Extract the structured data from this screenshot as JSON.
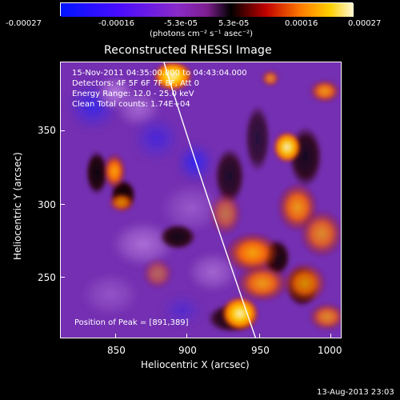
{
  "colorbar": {
    "ticks": [
      "-0.00027",
      "-0.00016",
      "-5.3e-05",
      "5.3e-05",
      "0.00016",
      "0.00027"
    ],
    "unit": "(photons cm⁻² s⁻¹ asec⁻²)"
  },
  "plot": {
    "title": "Reconstructed RHESSI Image",
    "xlabel": "Heliocentric X (arcsec)",
    "ylabel": "Heliocentric Y (arcsec)",
    "x_ticks": [
      "850",
      "900",
      "950",
      "1000"
    ],
    "y_ticks": [
      "350",
      "300",
      "250"
    ]
  },
  "annotations": {
    "line1": "15-Nov-2011 04:35:00.000 to 04:43:04.000",
    "line2": "Detectors: 4F 5F 6F 7F 8F, Att 0",
    "line3": "Energy Range: 12.0 - 25.0 keV",
    "line4": "Clean     Total counts: 1.74E+04",
    "peak": "Position of Peak = [891,389]"
  },
  "footer": {
    "timestamp": "13-Aug-2013 23:03"
  },
  "chart_data": {
    "type": "heatmap",
    "title": "Reconstructed RHESSI Image",
    "xlabel": "Heliocentric X (arcsec)",
    "ylabel": "Heliocentric Y (arcsec)",
    "x_ticks": [
      850,
      900,
      950,
      1000
    ],
    "y_ticks": [
      350,
      300,
      250
    ],
    "xlim": [
      815,
      1005
    ],
    "ylim": [
      205,
      395
    ],
    "colorbar": {
      "min": -0.00027,
      "max": 0.00027,
      "ticks": [
        -0.00027,
        -0.00016,
        -5.3e-05,
        5.3e-05,
        0.00016,
        0.00027
      ]
    }
  },
  "colors": {
    "background": "#000000",
    "foreground": "#ffffff"
  }
}
